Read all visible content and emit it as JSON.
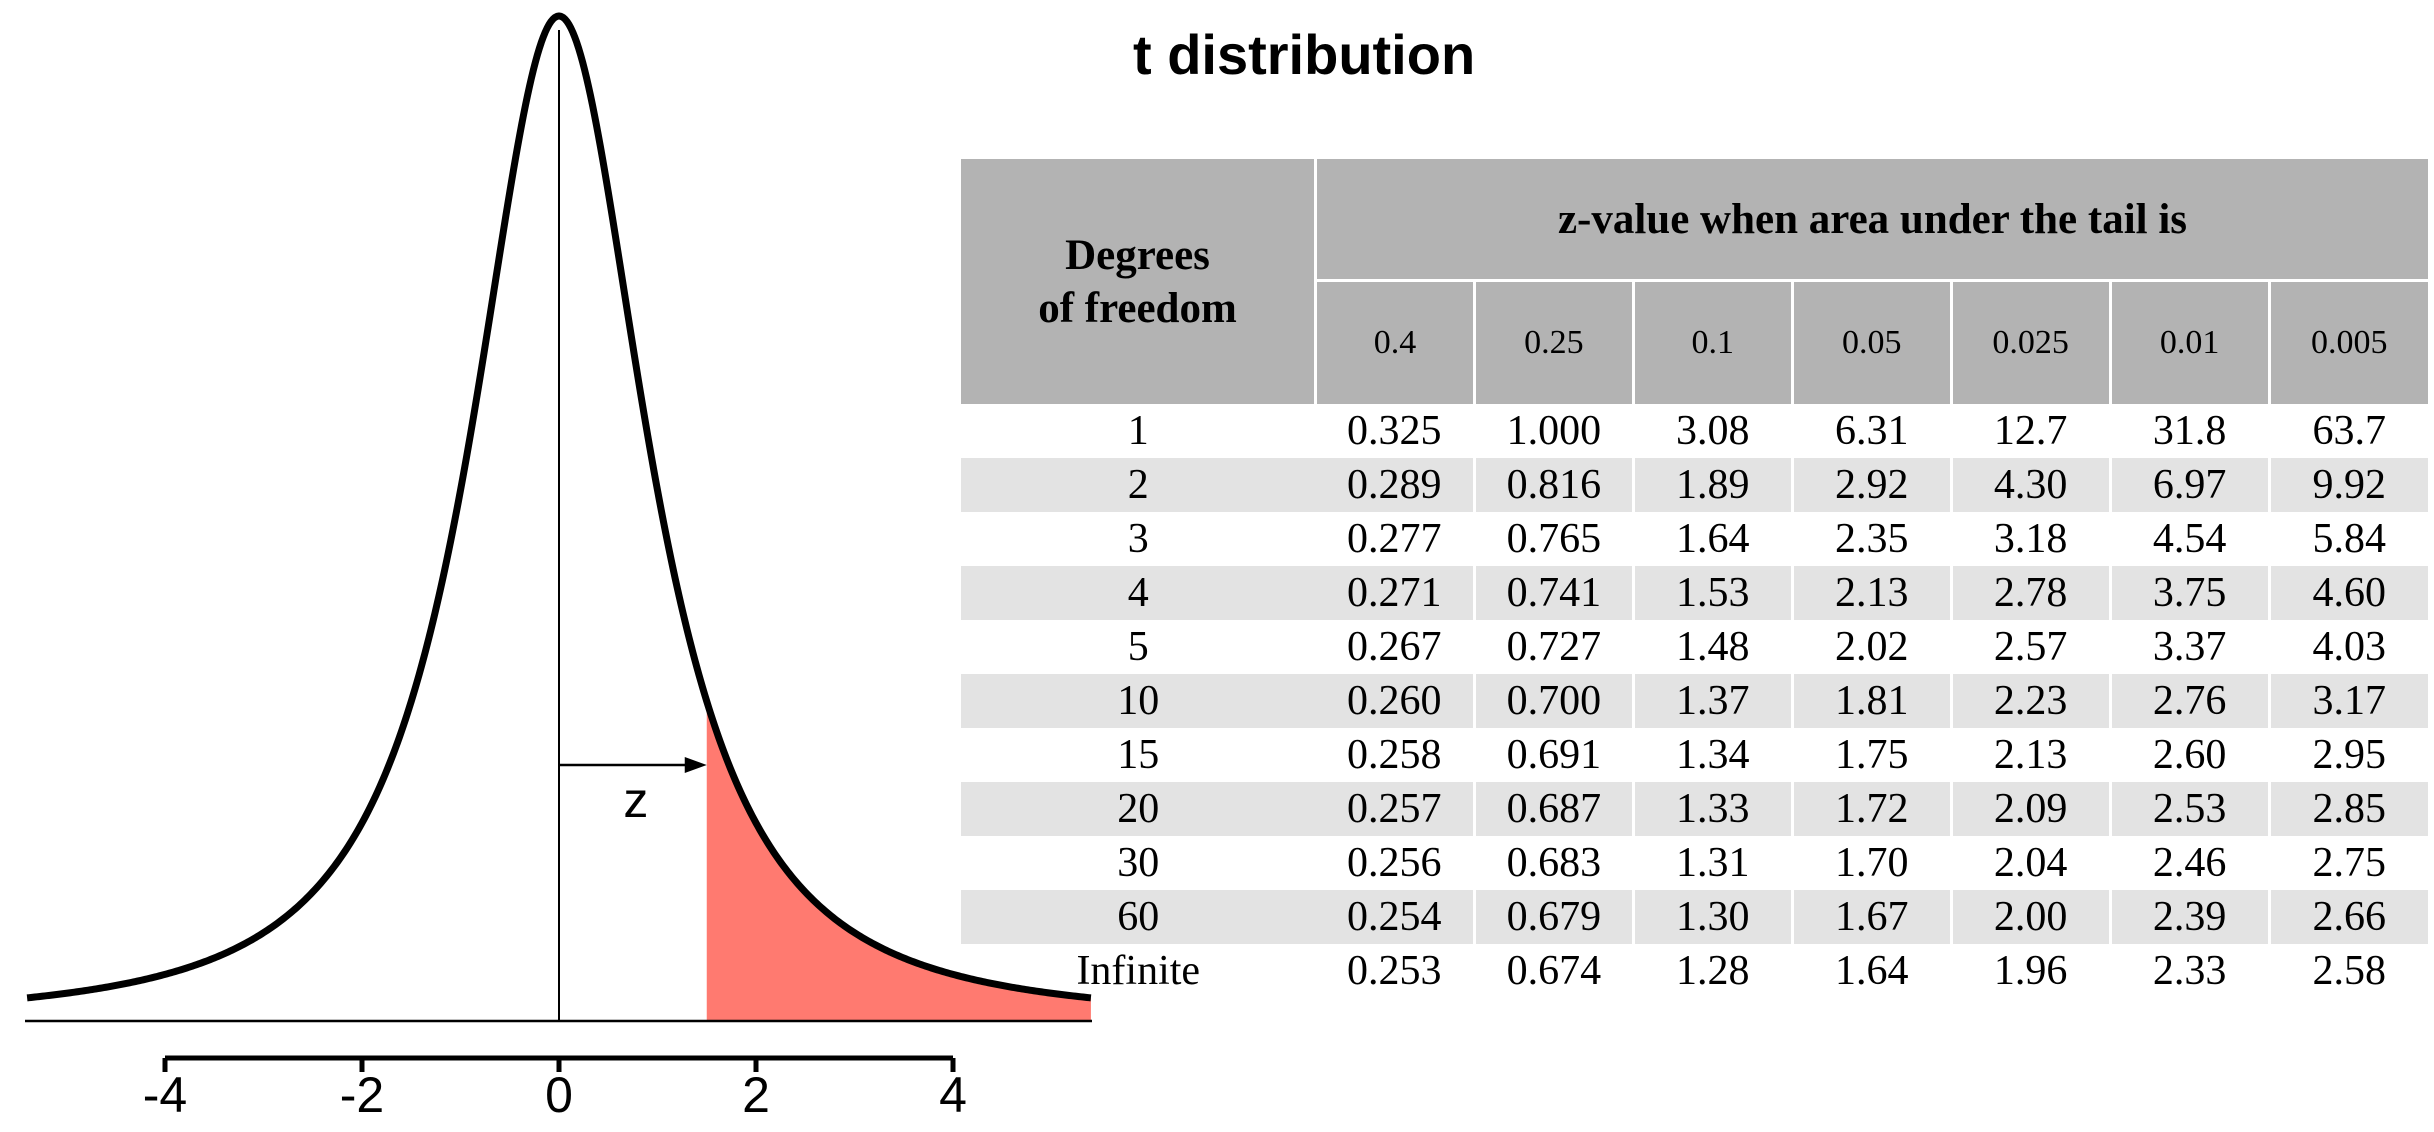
{
  "title": "t distribution",
  "chart_data": [
    {
      "type": "area",
      "distribution": "t",
      "xlim": [
        -5.4,
        5.4
      ],
      "x_ticks": [
        -4,
        -2,
        0,
        2,
        4
      ],
      "x_tick_labels": [
        "-4",
        "-2",
        "0",
        "2",
        "4"
      ],
      "shaded_region": {
        "from": 1.5,
        "to": 5.4,
        "color": "#ff7a70"
      },
      "annotation": {
        "label": "z",
        "from": 0,
        "to": 1.5
      },
      "curve_color": "#000000"
    },
    {
      "type": "table",
      "row_header": "Degrees of freedom",
      "row_header_lines": [
        "Degrees",
        "of freedom"
      ],
      "column_group_header": "z-value when area under the tail is",
      "columns": [
        "0.4",
        "0.25",
        "0.1",
        "0.05",
        "0.025",
        "0.01",
        "0.005"
      ],
      "rows": [
        {
          "df": "1",
          "values": [
            "0.325",
            "1.000",
            "3.08",
            "6.31",
            "12.7",
            "31.8",
            "63.7"
          ]
        },
        {
          "df": "2",
          "values": [
            "0.289",
            "0.816",
            "1.89",
            "2.92",
            "4.30",
            "6.97",
            "9.92"
          ]
        },
        {
          "df": "3",
          "values": [
            "0.277",
            "0.765",
            "1.64",
            "2.35",
            "3.18",
            "4.54",
            "5.84"
          ]
        },
        {
          "df": "4",
          "values": [
            "0.271",
            "0.741",
            "1.53",
            "2.13",
            "2.78",
            "3.75",
            "4.60"
          ]
        },
        {
          "df": "5",
          "values": [
            "0.267",
            "0.727",
            "1.48",
            "2.02",
            "2.57",
            "3.37",
            "4.03"
          ]
        },
        {
          "df": "10",
          "values": [
            "0.260",
            "0.700",
            "1.37",
            "1.81",
            "2.23",
            "2.76",
            "3.17"
          ]
        },
        {
          "df": "15",
          "values": [
            "0.258",
            "0.691",
            "1.34",
            "1.75",
            "2.13",
            "2.60",
            "2.95"
          ]
        },
        {
          "df": "20",
          "values": [
            "0.257",
            "0.687",
            "1.33",
            "1.72",
            "2.09",
            "2.53",
            "2.85"
          ]
        },
        {
          "df": "30",
          "values": [
            "0.256",
            "0.683",
            "1.31",
            "1.70",
            "2.04",
            "2.46",
            "2.75"
          ]
        },
        {
          "df": "60",
          "values": [
            "0.254",
            "0.679",
            "1.30",
            "1.67",
            "2.00",
            "2.39",
            "2.66"
          ]
        },
        {
          "df": "Infinite",
          "values": [
            "0.253",
            "0.674",
            "1.28",
            "1.64",
            "1.96",
            "2.33",
            "2.58"
          ]
        }
      ],
      "header_color": "#b3b3b3",
      "stripe_color": "#e3e3e3"
    }
  ]
}
